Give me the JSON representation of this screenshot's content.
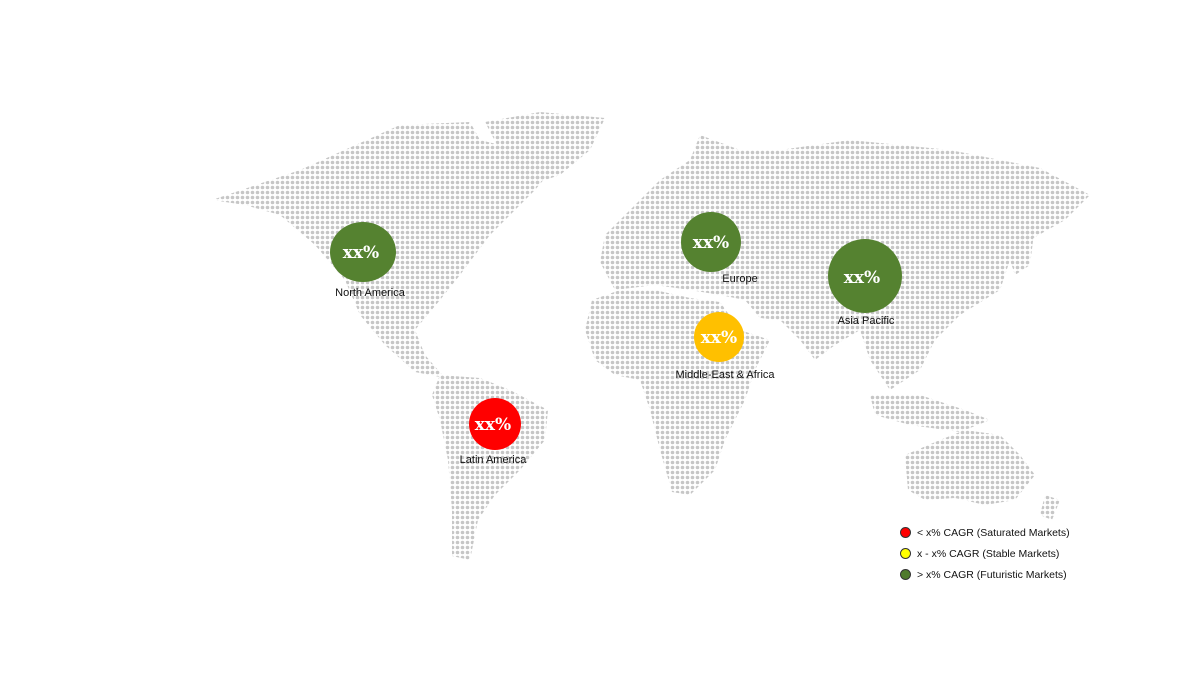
{
  "regions": [
    {
      "name": "North America",
      "value": "xx%",
      "category": "futuristic"
    },
    {
      "name": "Europe",
      "value": "xx%",
      "category": "futuristic"
    },
    {
      "name": "Asia Pacific",
      "value": "xx%",
      "category": "futuristic"
    },
    {
      "name": "Middle-East & Africa",
      "value": "xx%",
      "category": "stable"
    },
    {
      "name": "Latin America",
      "value": "xx%",
      "category": "saturated"
    }
  ],
  "legend": [
    {
      "label": "< x% CAGR (Saturated Markets)",
      "color": "#ff0000"
    },
    {
      "label": "x - x% CAGR (Stable Markets)",
      "color": "#ffff00"
    },
    {
      "label": "> x% CAGR (Futuristic Markets)",
      "color": "#4f7a2c"
    }
  ],
  "colors": {
    "futuristic": "#558230",
    "stable": "#ffc000",
    "saturated": "#ff0000",
    "land_dots": "#c6c6c6"
  }
}
